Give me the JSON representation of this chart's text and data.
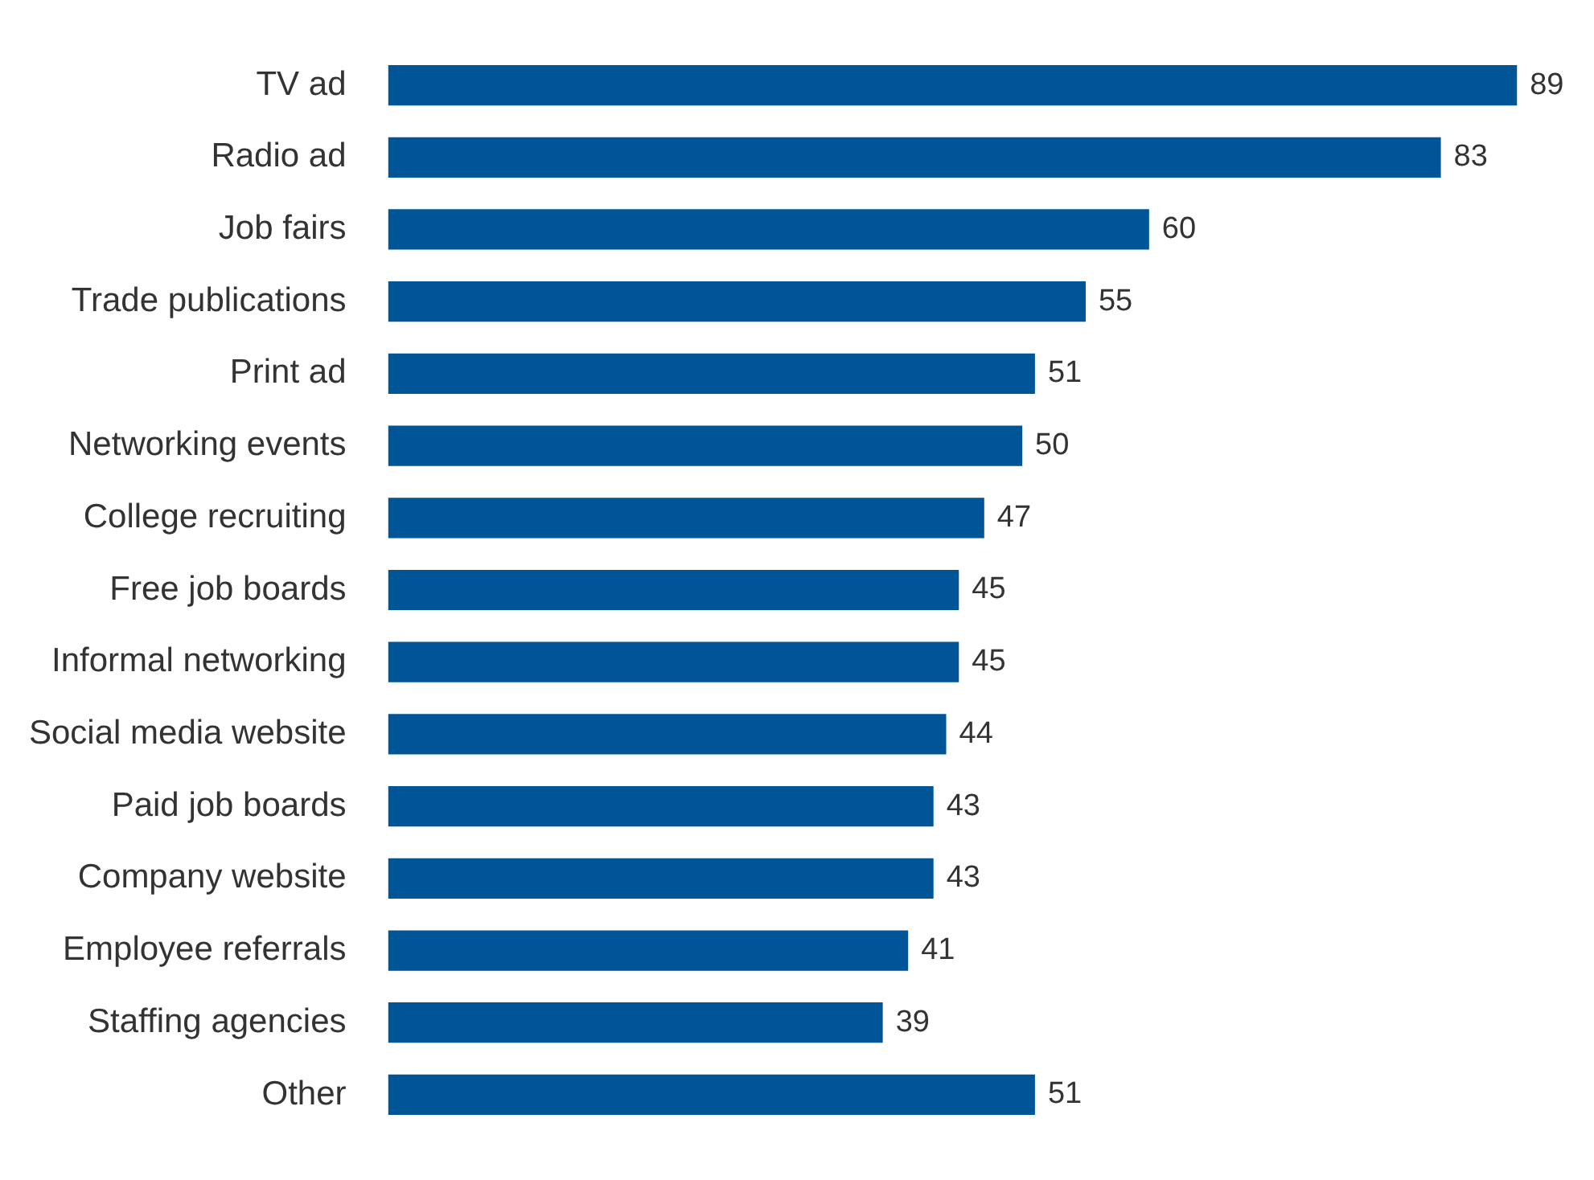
{
  "chart_data": {
    "type": "bar",
    "orientation": "horizontal",
    "color": "#005596",
    "data_labels": true,
    "categories": [
      "TV ad",
      "Radio ad",
      "Job fairs",
      "Trade publications",
      "Print ad",
      "Networking events",
      "College recruiting",
      "Free job boards",
      "Informal networking",
      "Social media website",
      "Paid job boards",
      "Company website",
      "Employee referrals",
      "Staffing agencies",
      "Other"
    ],
    "values": [
      89,
      83,
      60,
      55,
      51,
      50,
      47,
      45,
      45,
      44,
      43,
      43,
      41,
      39,
      51
    ]
  }
}
